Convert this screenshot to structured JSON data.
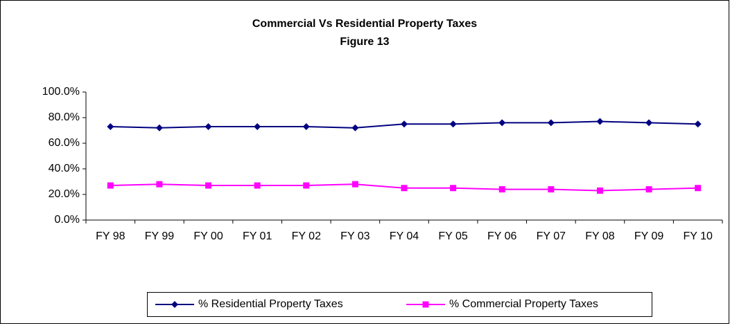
{
  "chart_data": {
    "type": "line",
    "title": "Commercial Vs Residential Property Taxes",
    "subtitle": "Figure 13",
    "categories": [
      "FY 98",
      "FY 99",
      "FY 00",
      "FY 01",
      "FY 02",
      "FY 03",
      "FY 04",
      "FY 05",
      "FY 06",
      "FY 07",
      "FY 08",
      "FY 09",
      "FY 10"
    ],
    "series": [
      {
        "name": "% Residential Property Taxes",
        "color": "#000080",
        "marker": "diamond",
        "values": [
          73,
          72,
          73,
          73,
          73,
          72,
          75,
          75,
          76,
          76,
          77,
          76,
          75
        ]
      },
      {
        "name": "% Commercial Property Taxes",
        "color": "#ff00ff",
        "marker": "square",
        "values": [
          27,
          28,
          27,
          27,
          27,
          28,
          25,
          25,
          24,
          24,
          23,
          24,
          25
        ]
      }
    ],
    "ylim": [
      0,
      100
    ],
    "yticks": [
      {
        "value": 0,
        "label": "0.0%"
      },
      {
        "value": 20,
        "label": "20.0%"
      },
      {
        "value": 40,
        "label": "40.0%"
      },
      {
        "value": 60,
        "label": "60.0%"
      },
      {
        "value": 80,
        "label": "80.0%"
      },
      {
        "value": 100,
        "label": "100.0%"
      }
    ],
    "legend": "bottom"
  }
}
